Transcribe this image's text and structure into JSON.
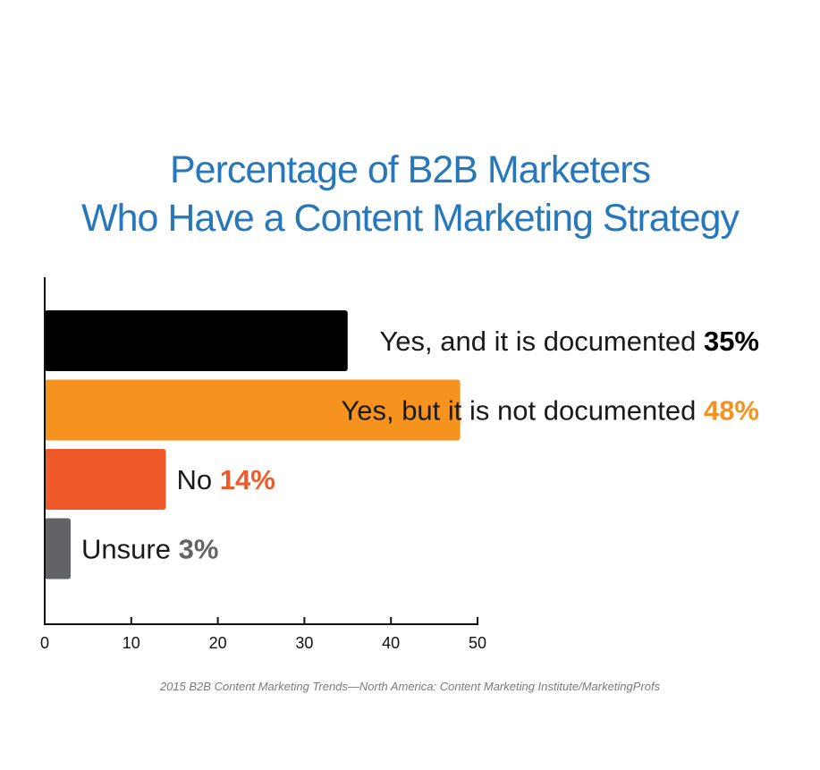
{
  "title": {
    "line1": "Percentage of B2B Marketers",
    "line2": "Who Have a Content Marketing Strategy"
  },
  "source": "2015 B2B Content Marketing Trends—North America: Content Marketing Institute/MarketingProfs",
  "colors": {
    "title": "#2777bb",
    "axis": "#111111",
    "label_text": "#1a1a1a",
    "source_text": "#7a7a7a"
  },
  "chart_data": {
    "type": "bar",
    "orientation": "horizontal",
    "title": "Percentage of B2B Marketers Who Have a Content Marketing Strategy",
    "xlim": [
      0,
      50
    ],
    "xticks": [
      0,
      10,
      20,
      30,
      40,
      50
    ],
    "grid": false,
    "legend": "none",
    "categories": [
      "Yes, and it is documented",
      "Yes, but it is not documented",
      "No",
      "Unsure"
    ],
    "values": [
      35,
      48,
      14,
      3
    ],
    "value_labels": [
      "35%",
      "48%",
      "14%",
      "3%"
    ],
    "bar_colors": [
      "#000000",
      "#f6921e",
      "#f05a28",
      "#626366"
    ],
    "value_label_colors": [
      "#000000",
      "#f6921e",
      "#f05a28",
      "#626366"
    ]
  }
}
